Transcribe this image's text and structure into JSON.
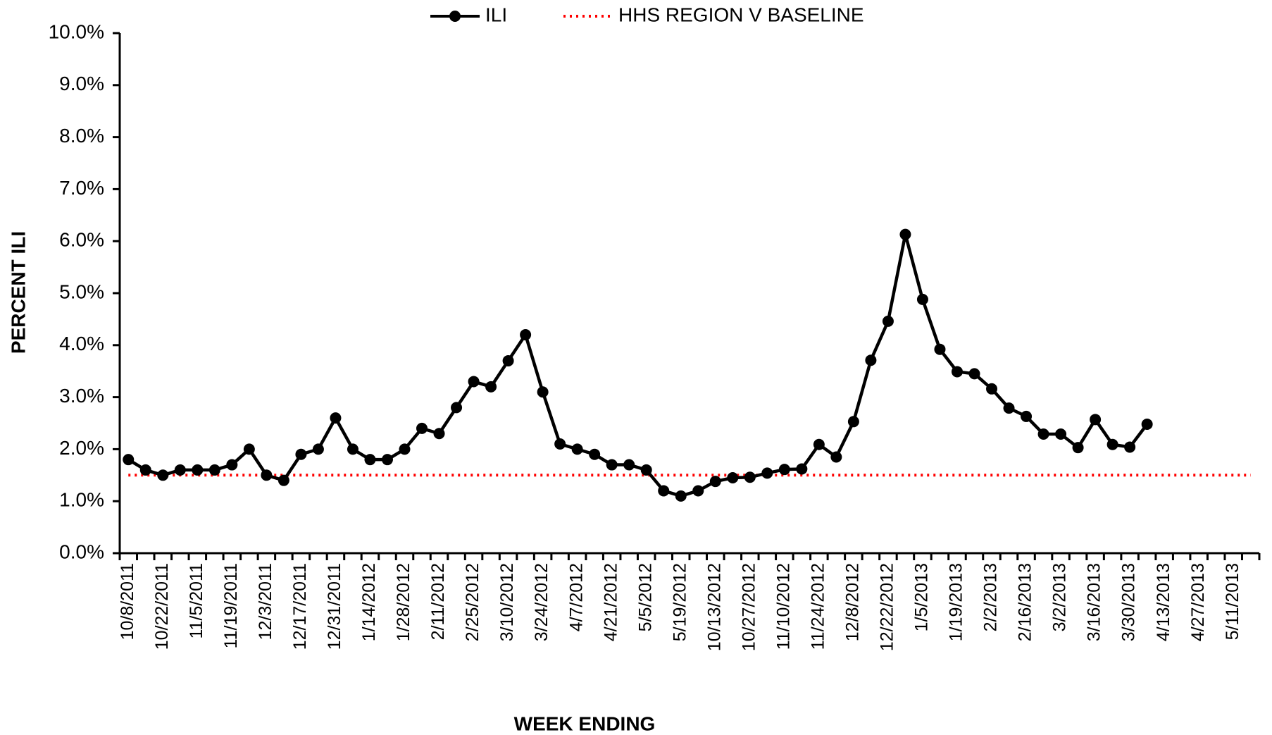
{
  "chart_data": {
    "type": "line",
    "xlabel": "WEEK ENDING",
    "ylabel": "PERCENT ILI",
    "categories": [
      "10/8/2011",
      null,
      "10/22/2011",
      null,
      "11/5/2011",
      null,
      "11/19/2011",
      null,
      "12/3/2011",
      null,
      "12/17/2011",
      null,
      "12/31/2011",
      null,
      "1/14/2012",
      null,
      "1/28/2012",
      null,
      "2/11/2012",
      null,
      "2/25/2012",
      null,
      "3/10/2012",
      null,
      "3/24/2012",
      null,
      "4/7/2012",
      null,
      "4/21/2012",
      null,
      "5/5/2012",
      null,
      "5/19/2012",
      null,
      "10/13/2012",
      null,
      "10/27/2012",
      null,
      "11/10/2012",
      null,
      "11/24/2012",
      null,
      "12/8/2012",
      null,
      "12/22/2012",
      null,
      "1/5/2013",
      null,
      "1/19/2013",
      null,
      "2/2/2013",
      null,
      "2/16/2013",
      null,
      "3/2/2013",
      null,
      "3/16/2013",
      null,
      "3/30/2013",
      null,
      "4/13/2013",
      null,
      "4/27/2013",
      null,
      "5/11/2013",
      null
    ],
    "series": [
      {
        "name": "ILI",
        "color": "#000000",
        "style": "solid",
        "marker": true,
        "values": [
          1.8,
          1.6,
          1.5,
          1.6,
          1.6,
          1.6,
          1.7,
          2.0,
          1.5,
          1.4,
          1.9,
          2.0,
          2.6,
          2.0,
          1.8,
          1.8,
          2.0,
          2.4,
          2.3,
          2.8,
          3.3,
          3.2,
          3.7,
          4.2,
          3.1,
          2.1,
          2.0,
          1.9,
          1.7,
          1.7,
          1.6,
          1.2,
          1.1,
          1.2,
          1.38,
          1.45,
          1.46,
          1.54,
          1.61,
          1.62,
          2.09,
          1.85,
          2.53,
          3.71,
          4.46,
          6.13,
          4.88,
          3.92,
          3.49,
          3.45,
          3.16,
          2.79,
          2.63,
          2.29,
          2.29,
          2.03,
          2.57,
          2.09,
          2.04,
          2.48,
          null,
          null,
          null,
          null,
          null,
          null
        ]
      },
      {
        "name": "HHS REGION V BASELINE",
        "color": "#ff0000",
        "style": "dotted",
        "marker": false,
        "values": [
          1.5,
          1.5,
          1.5,
          1.5,
          1.5,
          1.5,
          1.5,
          1.5,
          1.5,
          1.5,
          1.5,
          1.5,
          1.5,
          1.5,
          1.5,
          1.5,
          1.5,
          1.5,
          1.5,
          1.5,
          1.5,
          1.5,
          1.5,
          1.5,
          1.5,
          1.5,
          1.5,
          1.5,
          1.5,
          1.5,
          1.5,
          1.5,
          1.5,
          1.5,
          1.5,
          1.5,
          1.5,
          1.5,
          1.5,
          1.5,
          1.5,
          1.5,
          1.5,
          1.5,
          1.5,
          1.5,
          1.5,
          1.5,
          1.5,
          1.5,
          1.5,
          1.5,
          1.5,
          1.5,
          1.5,
          1.5,
          1.5,
          1.5,
          1.5,
          1.5,
          1.5,
          1.5,
          1.5,
          1.5,
          1.5,
          1.5
        ]
      }
    ],
    "ylim": [
      0,
      10
    ],
    "yticks": [
      {
        "value": 0,
        "label": "0.0%"
      },
      {
        "value": 1,
        "label": "1.0%"
      },
      {
        "value": 2,
        "label": "2.0%"
      },
      {
        "value": 3,
        "label": "3.0%"
      },
      {
        "value": 4,
        "label": "4.0%"
      },
      {
        "value": 5,
        "label": "5.0%"
      },
      {
        "value": 6,
        "label": "6.0%"
      },
      {
        "value": 7,
        "label": "7.0%"
      },
      {
        "value": 8,
        "label": "8.0%"
      },
      {
        "value": 9,
        "label": "9.0%"
      },
      {
        "value": 10,
        "label": "10.0%"
      }
    ],
    "grid": false,
    "legend": "top"
  }
}
